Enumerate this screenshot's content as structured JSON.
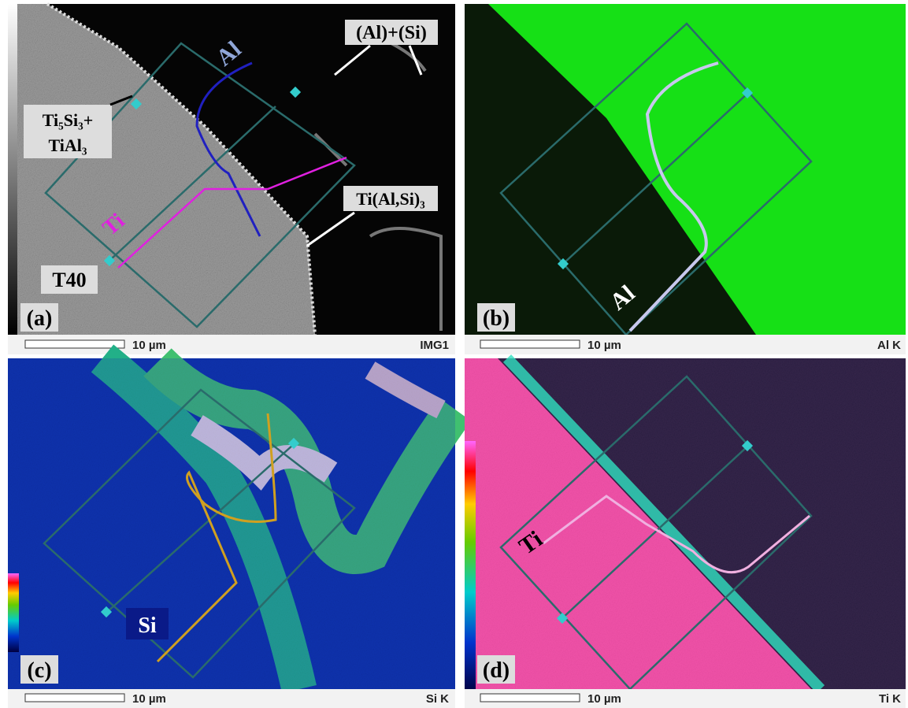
{
  "panels": [
    {
      "label": "(a)",
      "scale": "10 µm",
      "map": "IMG1",
      "annotations": [
        "Al",
        "(Al)+(Si)",
        "Ti₅Si₃+",
        "TiAl₃",
        "Ti(Al,Si)₃",
        "Ti",
        "T40"
      ]
    },
    {
      "label": "(b)",
      "scale": "10 µm",
      "map": "Al K",
      "annotations": [
        "Al"
      ]
    },
    {
      "label": "(c)",
      "scale": "10 µm",
      "map": "Si K",
      "annotations": [
        "Si"
      ]
    },
    {
      "label": "(d)",
      "scale": "10 µm",
      "map": "Ti K",
      "annotations": [
        "Ti"
      ]
    }
  ]
}
